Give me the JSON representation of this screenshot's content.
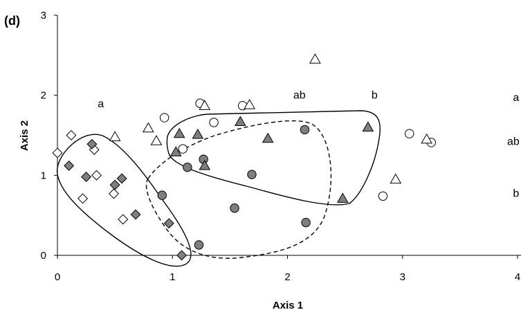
{
  "chart_data": {
    "type": "scatter",
    "panel_label": "(d)",
    "xlabel": "Axis 1",
    "ylabel": "Axis 2",
    "xlim": [
      0,
      4
    ],
    "ylim": [
      0,
      3
    ],
    "xticks": [
      "0",
      "1",
      "2",
      "3",
      "4"
    ],
    "yticks": [
      "0",
      "1",
      "2",
      "3"
    ],
    "grid": false,
    "series": [
      {
        "marker": "diamond",
        "filled": false,
        "points": [
          [
            0.0,
            1.28
          ],
          [
            0.12,
            1.5
          ],
          [
            0.32,
            1.32
          ],
          [
            0.34,
            1.0
          ],
          [
            0.49,
            0.77
          ],
          [
            0.22,
            0.71
          ],
          [
            0.57,
            0.45
          ]
        ]
      },
      {
        "marker": "diamond",
        "filled": true,
        "points": [
          [
            0.1,
            1.12
          ],
          [
            0.3,
            1.39
          ],
          [
            0.25,
            0.98
          ],
          [
            0.5,
            0.88
          ],
          [
            0.56,
            0.96
          ],
          [
            0.68,
            0.51
          ],
          [
            0.97,
            0.4
          ],
          [
            1.08,
            0.0
          ]
        ]
      },
      {
        "marker": "circle",
        "filled": false,
        "points": [
          [
            0.93,
            1.72
          ],
          [
            1.24,
            1.9
          ],
          [
            1.36,
            1.66
          ],
          [
            1.61,
            1.87
          ],
          [
            1.09,
            1.33
          ],
          [
            2.83,
            0.74
          ],
          [
            3.06,
            1.52
          ],
          [
            3.25,
            1.41
          ]
        ]
      },
      {
        "marker": "circle",
        "filled": true,
        "points": [
          [
            0.91,
            0.75
          ],
          [
            1.13,
            1.1
          ],
          [
            1.27,
            1.2
          ],
          [
            1.23,
            0.13
          ],
          [
            1.54,
            0.59
          ],
          [
            1.69,
            1.01
          ],
          [
            2.15,
            1.57
          ],
          [
            2.16,
            0.41
          ]
        ]
      },
      {
        "marker": "triangle",
        "filled": false,
        "points": [
          [
            0.5,
            1.48
          ],
          [
            0.79,
            1.59
          ],
          [
            0.86,
            1.43
          ],
          [
            1.28,
            1.87
          ],
          [
            1.67,
            1.88
          ],
          [
            2.24,
            2.45
          ],
          [
            2.94,
            0.95
          ],
          [
            3.21,
            1.45
          ]
        ]
      },
      {
        "marker": "triangle",
        "filled": true,
        "points": [
          [
            1.06,
            1.52
          ],
          [
            1.03,
            1.29
          ],
          [
            1.22,
            1.51
          ],
          [
            1.28,
            1.12
          ],
          [
            1.59,
            1.67
          ],
          [
            1.83,
            1.46
          ],
          [
            2.48,
            0.71
          ],
          [
            2.7,
            1.6
          ]
        ]
      }
    ],
    "annotations": [
      {
        "text": "a",
        "x": 0.35,
        "y": 1.85
      },
      {
        "text": "ab",
        "x": 2.05,
        "y": 1.96
      },
      {
        "text": "b",
        "x": 2.73,
        "y": 1.96
      },
      {
        "text": "a",
        "x": 3.96,
        "y": 1.93
      },
      {
        "text": "ab",
        "x": 3.91,
        "y": 1.38
      },
      {
        "text": "b",
        "x": 3.96,
        "y": 0.73
      }
    ]
  }
}
